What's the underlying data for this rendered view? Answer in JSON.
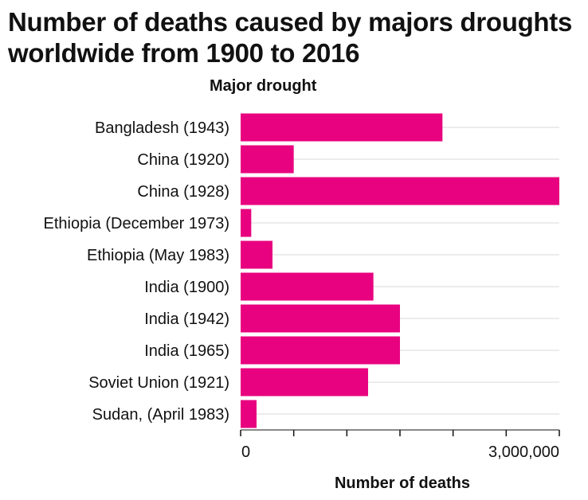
{
  "chart_data": {
    "type": "bar",
    "orientation": "horizontal",
    "title": "Number of deaths caused by majors droughts worldwide from 1900 to 2016",
    "ylabel": "Major drought",
    "xlabel": "Number of deaths",
    "categories": [
      "Bangladesh (1943)",
      "China (1920)",
      "China (1928)",
      "Ethiopia (December 1973)",
      "Ethiopia (May 1983)",
      "India (1900)",
      "India (1942)",
      "India (1965)",
      "Soviet Union (1921)",
      "Sudan, (April 1983)"
    ],
    "values": [
      1900000,
      500000,
      3000000,
      100000,
      300000,
      1250000,
      1500000,
      1500000,
      1200000,
      150000
    ],
    "xlim": [
      0,
      3000000
    ],
    "xticks": [
      0,
      500000,
      1000000,
      1500000,
      2000000,
      2500000,
      3000000
    ],
    "xtick_labels": [
      "0",
      "",
      "",
      "",
      "",
      "",
      "3,000,000"
    ],
    "grid": true,
    "bar_color": "#e8027f",
    "grid_color": "#d9d9d9"
  }
}
